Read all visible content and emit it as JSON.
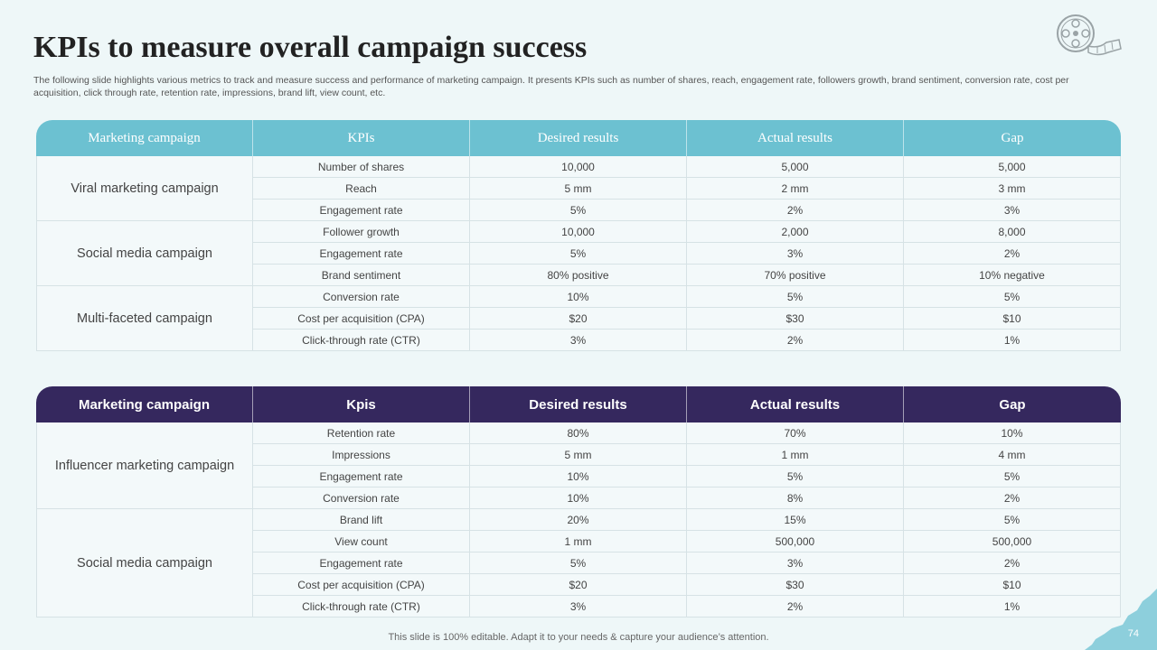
{
  "slide": {
    "title": "KPIs to measure overall campaign success",
    "subtitle": "The following slide highlights various metrics to track and measure success and performance of marketing campaign. It presents KPIs such as number of shares, reach, engagement rate, followers growth, brand sentiment, conversion rate, cost per acquisition, click through rate, retention rate, impressions, brand lift, view count, etc.",
    "footer": "This slide is 100% editable. Adapt it to your needs & capture your audience’s attention.",
    "page_number": "74"
  },
  "colors": {
    "background": "#eef7f8",
    "table1_header": "#6cc1d1",
    "table2_header": "#35285e"
  },
  "table1": {
    "headers": [
      "Marketing campaign",
      "KPIs",
      "Desired results",
      "Actual results",
      "Gap"
    ],
    "groups": [
      {
        "campaign": "Viral marketing campaign",
        "rows": [
          [
            "Number of shares",
            "10,000",
            "5,000",
            "5,000"
          ],
          [
            "Reach",
            "5 mm",
            "2 mm",
            "3 mm"
          ],
          [
            "Engagement rate",
            "5%",
            "2%",
            "3%"
          ]
        ]
      },
      {
        "campaign": "Social media campaign",
        "rows": [
          [
            "Follower growth",
            "10,000",
            "2,000",
            "8,000"
          ],
          [
            "Engagement rate",
            "5%",
            "3%",
            "2%"
          ],
          [
            "Brand sentiment",
            "80% positive",
            "70% positive",
            "10% negative"
          ]
        ]
      },
      {
        "campaign": "Multi-faceted campaign",
        "rows": [
          [
            "Conversion rate",
            "10%",
            "5%",
            "5%"
          ],
          [
            "Cost per acquisition (CPA)",
            "$20",
            "$30",
            "$10"
          ],
          [
            "Click-through rate (CTR)",
            "3%",
            "2%",
            "1%"
          ]
        ]
      }
    ]
  },
  "table2": {
    "headers": [
      "Marketing campaign",
      "Kpis",
      "Desired results",
      "Actual results",
      "Gap"
    ],
    "groups": [
      {
        "campaign": "Influencer marketing campaign",
        "rows": [
          [
            "Retention rate",
            "80%",
            "70%",
            "10%"
          ],
          [
            "Impressions",
            "5 mm",
            "1 mm",
            "4 mm"
          ],
          [
            "Engagement rate",
            "10%",
            "5%",
            "5%"
          ],
          [
            "Conversion rate",
            "10%",
            "8%",
            "2%"
          ]
        ]
      },
      {
        "campaign": "Social media campaign",
        "rows": [
          [
            "Brand lift",
            "20%",
            "15%",
            "5%"
          ],
          [
            "View count",
            "1 mm",
            "500,000",
            "500,000"
          ],
          [
            "Engagement rate",
            "5%",
            "3%",
            "2%"
          ],
          [
            "Cost per acquisition (CPA)",
            "$20",
            "$30",
            "$10"
          ],
          [
            "Click-through rate (CTR)",
            "3%",
            "2%",
            "1%"
          ]
        ]
      }
    ]
  }
}
